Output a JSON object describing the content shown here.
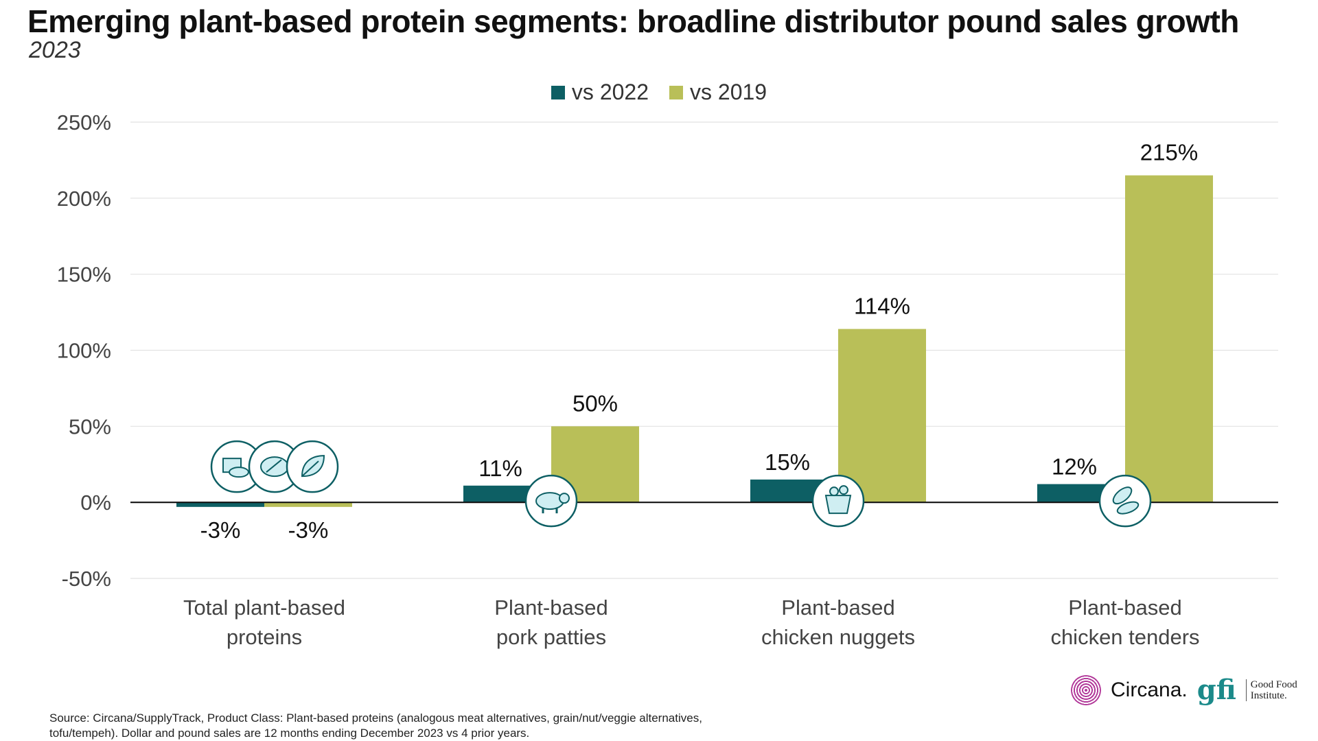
{
  "title": "Emerging plant-based protein segments: broadline distributor pound sales growth",
  "subtitle": "2023",
  "colors": {
    "vs2022": "#0d5f64",
    "vs2019": "#b9bf58",
    "icon": "#0d5f64",
    "icon_fill": "#cfeef2"
  },
  "chart_data": {
    "type": "bar",
    "title": "Emerging plant-based protein segments: broadline distributor pound sales growth",
    "subtitle": "2023",
    "categories": [
      [
        "Total plant-based",
        "proteins"
      ],
      [
        "Plant-based",
        "pork patties"
      ],
      [
        "Plant-based",
        "chicken nuggets"
      ],
      [
        "Plant-based",
        "chicken tenders"
      ]
    ],
    "series": [
      {
        "name": "vs 2022",
        "values": [
          -3,
          11,
          15,
          12
        ],
        "labels": [
          "-3%",
          "11%",
          "15%",
          "12%"
        ]
      },
      {
        "name": "vs 2019",
        "values": [
          -3,
          50,
          114,
          215
        ],
        "labels": [
          "-3%",
          "50%",
          "114%",
          "215%"
        ]
      }
    ],
    "ylim": [
      -50,
      250
    ],
    "yticks": [
      -50,
      0,
      50,
      100,
      150,
      200,
      250
    ],
    "ytick_labels": [
      "-50%",
      "0%",
      "50%",
      "100%",
      "150%",
      "200%",
      "250%"
    ],
    "xlabel": "",
    "ylabel": "",
    "legend": "top-center",
    "grid": true,
    "icons": [
      "plant-proteins-icon",
      "pig-icon",
      "nuggets-bucket-icon",
      "chicken-tenders-icon"
    ]
  },
  "footer": {
    "source": "Source: Circana/SupplyTrack, Product Class: Plant-based proteins (analogous meat alternatives, grain/nut/veggie alternatives, tofu/tempeh). Dollar and pound sales are 12 months ending December 2023 vs 4 prior years.",
    "circana": "Circana.",
    "gfi_mark": "gfi",
    "gfi_line1": "Good Food",
    "gfi_line2": "Institute."
  }
}
